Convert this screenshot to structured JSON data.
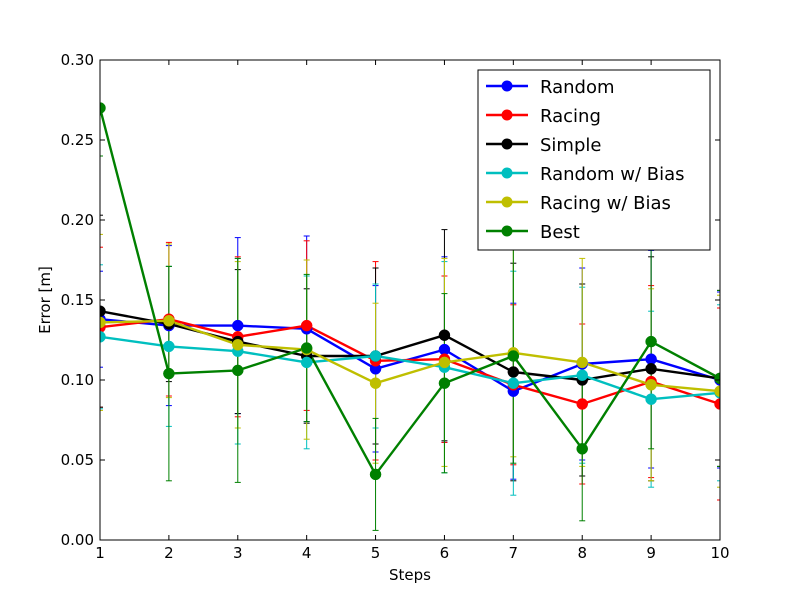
{
  "chart_data": {
    "type": "line",
    "title": "",
    "xlabel": "Steps",
    "ylabel": "Error [m]",
    "xlim": [
      1,
      10
    ],
    "ylim": [
      0.0,
      0.3
    ],
    "x_ticks": [
      1,
      2,
      3,
      4,
      5,
      6,
      7,
      8,
      9,
      10
    ],
    "y_ticks": [
      0.0,
      0.05,
      0.1,
      0.15,
      0.2,
      0.25,
      0.3
    ],
    "y_tick_labels": [
      "0.00",
      "0.05",
      "0.10",
      "0.15",
      "0.20",
      "0.25",
      "0.30"
    ],
    "grid": false,
    "legend_position": "top-right",
    "x": [
      1,
      2,
      3,
      4,
      5,
      6,
      7,
      8,
      9,
      10
    ],
    "series": [
      {
        "name": "Random",
        "color": "#0000ff",
        "values": [
          0.138,
          0.134,
          0.134,
          0.132,
          0.107,
          0.119,
          0.093,
          0.11,
          0.113,
          0.1
        ],
        "err": [
          0.03,
          0.05,
          0.055,
          0.058,
          0.052,
          0.058,
          0.055,
          0.06,
          0.068,
          0.055
        ]
      },
      {
        "name": "Racing",
        "color": "#ff0000",
        "values": [
          0.133,
          0.138,
          0.127,
          0.134,
          0.112,
          0.113,
          0.097,
          0.085,
          0.099,
          0.085
        ],
        "err": [
          0.05,
          0.048,
          0.05,
          0.053,
          0.062,
          0.052,
          0.05,
          0.05,
          0.06,
          0.06
        ]
      },
      {
        "name": "Simple",
        "color": "#000000",
        "values": [
          0.143,
          0.135,
          0.124,
          0.115,
          0.115,
          0.128,
          0.105,
          0.1,
          0.107,
          0.101
        ],
        "err": [
          0.06,
          0.036,
          0.045,
          0.042,
          0.055,
          0.066,
          0.068,
          0.06,
          0.07,
          0.055
        ]
      },
      {
        "name": "Random w/ Bias",
        "color": "#00bfbf",
        "values": [
          0.127,
          0.121,
          0.118,
          0.111,
          0.115,
          0.108,
          0.098,
          0.103,
          0.088,
          0.092
        ],
        "err": [
          0.045,
          0.05,
          0.058,
          0.054,
          0.045,
          0.066,
          0.07,
          0.055,
          0.055,
          0.055
        ]
      },
      {
        "name": "Racing w/ Bias",
        "color": "#bfbf00",
        "values": [
          0.136,
          0.137,
          0.122,
          0.119,
          0.098,
          0.111,
          0.117,
          0.111,
          0.097,
          0.093
        ],
        "err": [
          0.055,
          0.048,
          0.052,
          0.056,
          0.05,
          0.065,
          0.065,
          0.065,
          0.06,
          0.06
        ]
      },
      {
        "name": "Best",
        "color": "#008000",
        "values": [
          0.27,
          0.104,
          0.106,
          0.12,
          0.041,
          0.098,
          0.115,
          0.057,
          0.124,
          0.101
        ],
        "err": [
          0.03,
          0.067,
          0.07,
          0.046,
          0.035,
          0.056,
          0.067,
          0.045,
          0.067,
          0.055
        ]
      }
    ]
  }
}
